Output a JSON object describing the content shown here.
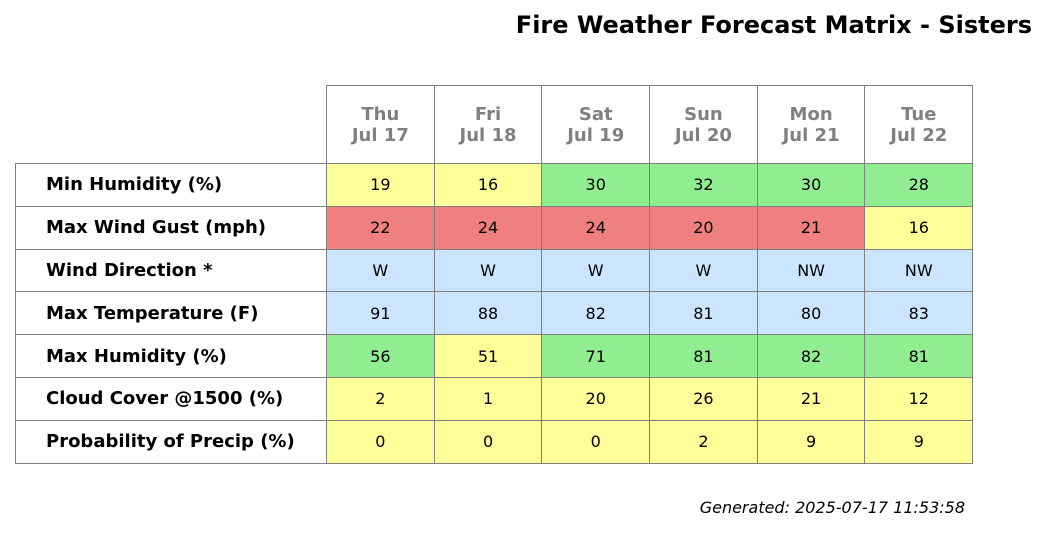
{
  "title": "Fire Weather Forecast Matrix - Sisters",
  "generated": "Generated: 2025-07-17 11:53:58",
  "colors": {
    "yellow": "#ffff99",
    "green": "#90ee90",
    "red": "#f08080",
    "blue": "#cce5ff",
    "header_text": "#808080",
    "border": "#808080"
  },
  "chart_data": {
    "type": "table",
    "title": "Fire Weather Forecast Matrix - Sisters",
    "columns": [
      {
        "day": "Thu",
        "date": "Jul 17"
      },
      {
        "day": "Fri",
        "date": "Jul 18"
      },
      {
        "day": "Sat",
        "date": "Jul 19"
      },
      {
        "day": "Sun",
        "date": "Jul 20"
      },
      {
        "day": "Mon",
        "date": "Jul 21"
      },
      {
        "day": "Tue",
        "date": "Jul 22"
      }
    ],
    "rows": [
      {
        "label": "Min Humidity (%)",
        "values": [
          "19",
          "16",
          "30",
          "32",
          "30",
          "28"
        ],
        "colors": [
          "yellow",
          "yellow",
          "green",
          "green",
          "green",
          "green"
        ]
      },
      {
        "label": "Max Wind Gust (mph)",
        "values": [
          "22",
          "24",
          "24",
          "20",
          "21",
          "16"
        ],
        "colors": [
          "red",
          "red",
          "red",
          "red",
          "red",
          "yellow"
        ]
      },
      {
        "label": "Wind Direction *",
        "values": [
          "W",
          "W",
          "W",
          "W",
          "NW",
          "NW"
        ],
        "colors": [
          "blue",
          "blue",
          "blue",
          "blue",
          "blue",
          "blue"
        ]
      },
      {
        "label": "Max Temperature (F)",
        "values": [
          "91",
          "88",
          "82",
          "81",
          "80",
          "83"
        ],
        "colors": [
          "blue",
          "blue",
          "blue",
          "blue",
          "blue",
          "blue"
        ]
      },
      {
        "label": "Max Humidity (%)",
        "values": [
          "56",
          "51",
          "71",
          "81",
          "82",
          "81"
        ],
        "colors": [
          "green",
          "yellow",
          "green",
          "green",
          "green",
          "green"
        ]
      },
      {
        "label": "Cloud Cover @1500 (%)",
        "values": [
          "2",
          "1",
          "20",
          "26",
          "21",
          "12"
        ],
        "colors": [
          "yellow",
          "yellow",
          "yellow",
          "yellow",
          "yellow",
          "yellow"
        ]
      },
      {
        "label": "Probability of Precip (%)",
        "values": [
          "0",
          "0",
          "0",
          "2",
          "9",
          "9"
        ],
        "colors": [
          "yellow",
          "yellow",
          "yellow",
          "yellow",
          "yellow",
          "yellow"
        ]
      }
    ]
  }
}
